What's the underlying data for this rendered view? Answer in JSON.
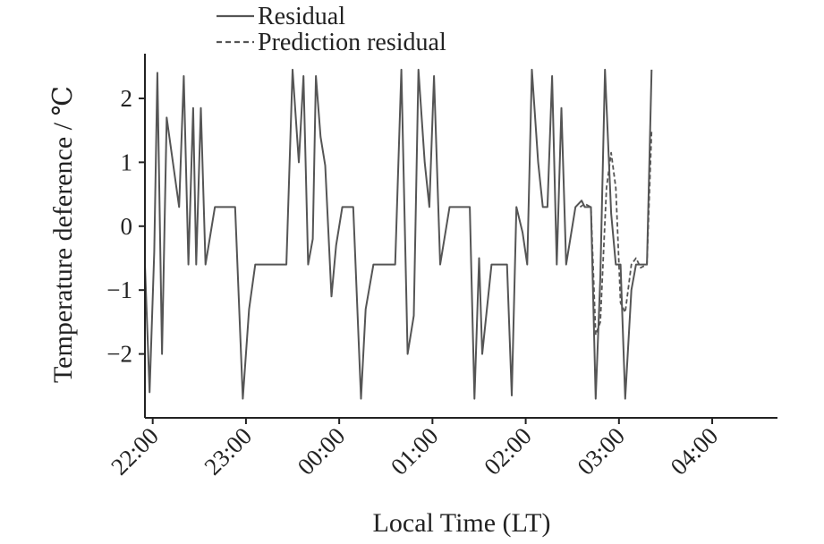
{
  "chart_data": {
    "type": "line",
    "title": "",
    "xlabel": "Local Time (LT)",
    "ylabel": "Temperature deference / ℃",
    "xlim": [
      "21:55",
      "04:42"
    ],
    "ylim": [
      -3.0,
      2.7
    ],
    "x_ticks": [
      "22:00",
      "23:00",
      "00:00",
      "01:00",
      "02:00",
      "03:00",
      "04:00"
    ],
    "y_ticks": [
      2,
      1,
      0,
      -1,
      -2
    ],
    "y_tick_labels": [
      "2",
      "1",
      "0",
      "−1",
      "−2"
    ],
    "grid": false,
    "legend_position": "top-left",
    "series": [
      {
        "name": "Residual",
        "style": "solid",
        "color": "#555555",
        "points": [
          [
            "21:55",
            -0.6
          ],
          [
            "21:58",
            -2.6
          ],
          [
            "22:01",
            -0.4
          ],
          [
            "22:03",
            2.4
          ],
          [
            "22:06",
            -2.0
          ],
          [
            "22:09",
            1.7
          ],
          [
            "22:17",
            0.3
          ],
          [
            "22:20",
            2.35
          ],
          [
            "22:23",
            -0.6
          ],
          [
            "22:26",
            1.85
          ],
          [
            "22:28",
            -0.6
          ],
          [
            "22:31",
            1.85
          ],
          [
            "22:34",
            -0.6
          ],
          [
            "22:40",
            0.3
          ],
          [
            "22:50",
            0.3
          ],
          [
            "22:53",
            0.3
          ],
          [
            "22:58",
            -2.7
          ],
          [
            "23:02",
            -1.3
          ],
          [
            "23:06",
            -0.6
          ],
          [
            "23:18",
            -0.6
          ],
          [
            "23:26",
            -0.6
          ],
          [
            "23:30",
            2.45
          ],
          [
            "23:34",
            1.0
          ],
          [
            "23:37",
            2.35
          ],
          [
            "23:40",
            -0.6
          ],
          [
            "23:43",
            -0.2
          ],
          [
            "23:45",
            2.35
          ],
          [
            "23:48",
            1.4
          ],
          [
            "23:51",
            0.95
          ],
          [
            "23:55",
            -1.1
          ],
          [
            "23:58",
            -0.3
          ],
          [
            "00:02",
            0.3
          ],
          [
            "00:09",
            0.3
          ],
          [
            "00:14",
            -2.7
          ],
          [
            "00:17",
            -1.3
          ],
          [
            "00:22",
            -0.6
          ],
          [
            "00:36",
            -0.6
          ],
          [
            "00:40",
            2.45
          ],
          [
            "00:44",
            -2.0
          ],
          [
            "00:48",
            -1.4
          ],
          [
            "00:51",
            2.45
          ],
          [
            "00:55",
            1.0
          ],
          [
            "00:58",
            0.3
          ],
          [
            "01:01",
            2.35
          ],
          [
            "01:05",
            -0.6
          ],
          [
            "01:11",
            0.3
          ],
          [
            "01:24",
            0.3
          ],
          [
            "01:27",
            -2.7
          ],
          [
            "01:30",
            -0.5
          ],
          [
            "01:32",
            -2.0
          ],
          [
            "01:38",
            -0.6
          ],
          [
            "01:48",
            -0.6
          ],
          [
            "01:51",
            -2.65
          ],
          [
            "01:54",
            0.3
          ],
          [
            "01:58",
            -0.1
          ],
          [
            "02:01",
            -0.6
          ],
          [
            "02:04",
            2.45
          ],
          [
            "02:08",
            1.0
          ],
          [
            "02:11",
            0.3
          ],
          [
            "02:14",
            0.3
          ],
          [
            "02:17",
            2.35
          ],
          [
            "02:20",
            -0.6
          ],
          [
            "02:23",
            1.85
          ],
          [
            "02:26",
            -0.6
          ],
          [
            "02:32",
            0.3
          ],
          [
            "02:36",
            0.4
          ],
          [
            "02:38",
            0.3
          ],
          [
            "02:42",
            0.3
          ],
          [
            "02:45",
            -2.7
          ],
          [
            "02:48",
            -0.8
          ],
          [
            "02:51",
            2.45
          ],
          [
            "02:55",
            0.2
          ],
          [
            "02:58",
            -0.6
          ],
          [
            "03:01",
            -0.6
          ],
          [
            "03:04",
            -2.7
          ],
          [
            "03:08",
            -1.0
          ],
          [
            "03:11",
            -0.6
          ],
          [
            "03:14",
            -0.6
          ],
          [
            "03:18",
            -0.6
          ],
          [
            "03:21",
            2.45
          ]
        ]
      },
      {
        "name": "Prediction residual",
        "style": "dashed",
        "color": "#555555",
        "points": [
          [
            "02:35",
            0.3
          ],
          [
            "02:38",
            0.35
          ],
          [
            "02:42",
            0.3
          ],
          [
            "02:45",
            -1.7
          ],
          [
            "02:48",
            -1.5
          ],
          [
            "02:52",
            0.6
          ],
          [
            "02:55",
            1.15
          ],
          [
            "02:58",
            0.6
          ],
          [
            "03:01",
            -1.2
          ],
          [
            "03:04",
            -1.35
          ],
          [
            "03:08",
            -0.6
          ],
          [
            "03:11",
            -0.5
          ],
          [
            "03:14",
            -0.65
          ],
          [
            "03:18",
            -0.6
          ],
          [
            "03:21",
            1.5
          ]
        ]
      }
    ]
  }
}
